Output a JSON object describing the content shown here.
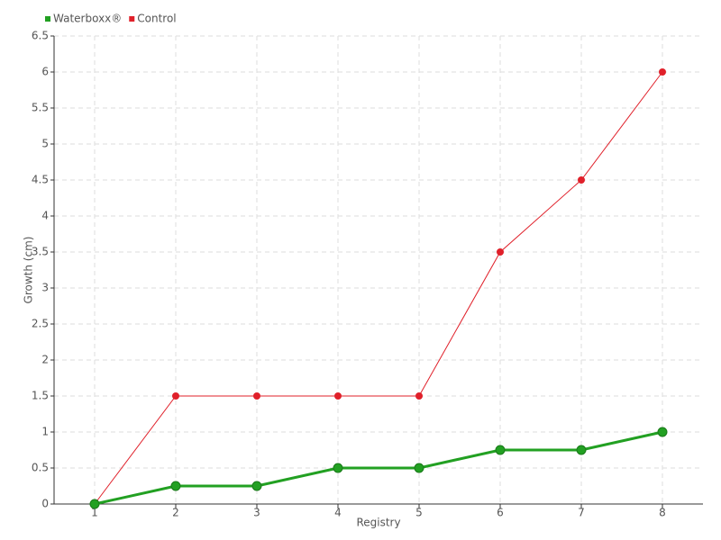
{
  "chart_data": {
    "type": "line",
    "x_label": "Registry",
    "y_label": "Growth (cm)",
    "categories": [
      "1",
      "2",
      "3",
      "4",
      "5",
      "6",
      "7",
      "8"
    ],
    "series": [
      {
        "name": "Waterboxx®",
        "color": "#22a022",
        "values": [
          0,
          0.25,
          0.25,
          0.5,
          0.5,
          0.75,
          0.75,
          1
        ]
      },
      {
        "name": "Control",
        "color": "#e0202a",
        "values": [
          0,
          1.5,
          1.5,
          1.5,
          1.5,
          3.5,
          4.5,
          6
        ]
      }
    ],
    "ylim": [
      0,
      6.5
    ],
    "yticks": [
      0,
      0.5,
      1,
      1.5,
      2,
      2.5,
      3,
      3.5,
      4,
      4.5,
      5,
      5.5,
      6,
      6.5
    ],
    "grid": true,
    "legend": "top-left"
  }
}
